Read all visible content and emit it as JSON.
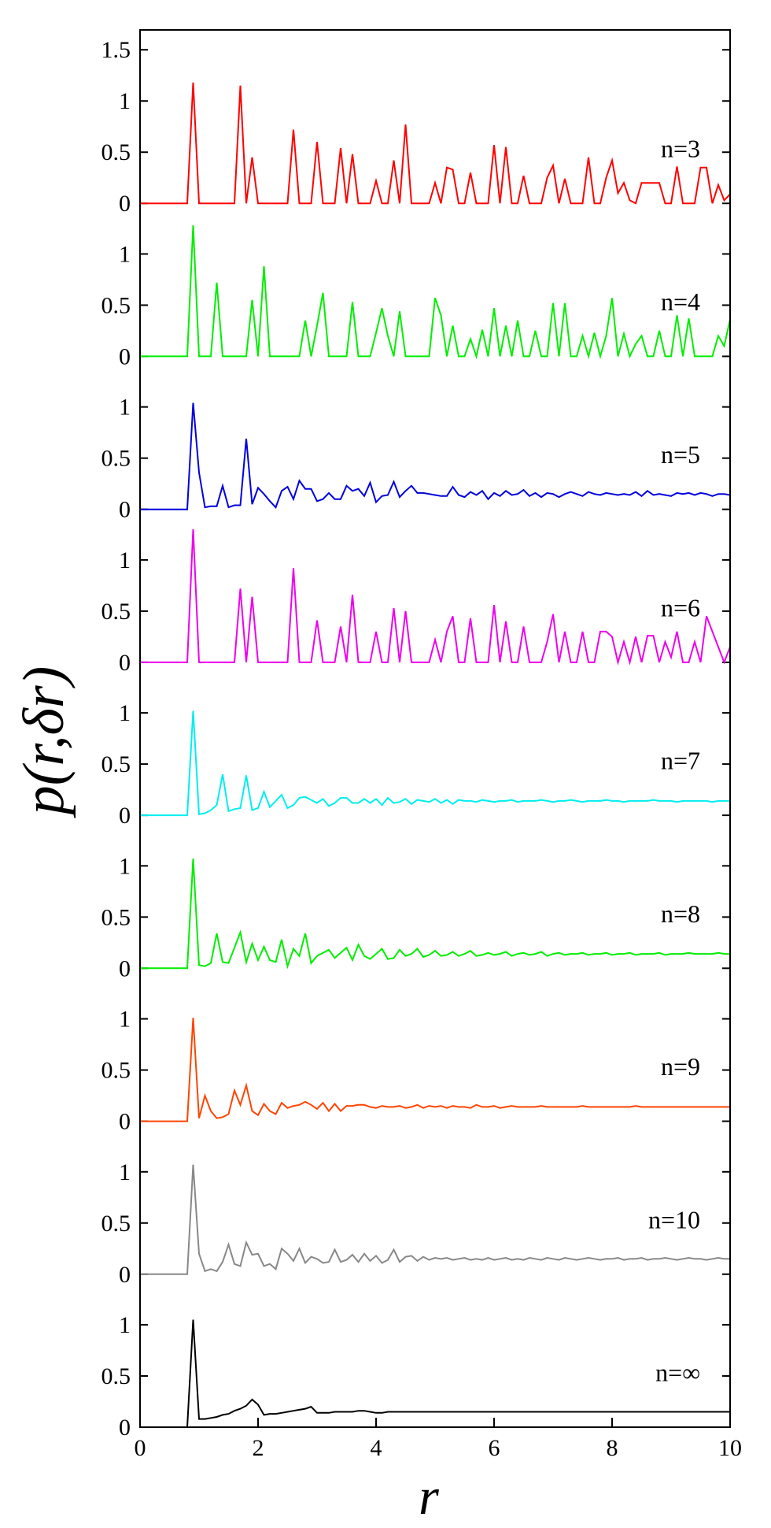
{
  "chart_data": {
    "type": "line",
    "layout": "stacked-panels",
    "ylabel_parts": [
      "p(",
      "r",
      ",",
      "δr",
      ")"
    ],
    "xlabel": "r",
    "xlim": [
      0,
      10
    ],
    "x_ticks": [
      "0",
      "2",
      "4",
      "6",
      "8",
      "10"
    ],
    "top_panel_ylim": [
      0,
      1.5
    ],
    "top_panel_y_ticks": [
      "0",
      "0.5",
      "1",
      "1.5"
    ],
    "panel_ylim": [
      0,
      1.3
    ],
    "panel_y_ticks": [
      "0",
      "0.5",
      "1"
    ],
    "grid": false,
    "x": [
      0.0,
      0.1,
      0.2,
      0.3,
      0.4,
      0.5,
      0.6,
      0.7,
      0.8,
      0.9,
      1.0,
      1.1,
      1.2,
      1.3,
      1.4,
      1.5,
      1.6,
      1.7,
      1.8,
      1.9,
      2.0,
      2.1,
      2.2,
      2.3,
      2.4,
      2.5,
      2.6,
      2.7,
      2.8,
      2.9,
      3.0,
      3.1,
      3.2,
      3.3,
      3.4,
      3.5,
      3.6,
      3.7,
      3.8,
      3.9,
      4.0,
      4.1,
      4.2,
      4.3,
      4.4,
      4.5,
      4.6,
      4.7,
      4.8,
      4.9,
      5.0,
      5.1,
      5.2,
      5.3,
      5.4,
      5.5,
      5.6,
      5.7,
      5.8,
      5.9,
      6.0,
      6.1,
      6.2,
      6.3,
      6.4,
      6.5,
      6.6,
      6.7,
      6.8,
      6.9,
      7.0,
      7.1,
      7.2,
      7.3,
      7.4,
      7.5,
      7.6,
      7.7,
      7.8,
      7.9,
      8.0,
      8.1,
      8.2,
      8.3,
      8.4,
      8.5,
      8.6,
      8.7,
      8.8,
      8.9,
      9.0,
      9.1,
      9.2,
      9.3,
      9.4,
      9.5,
      9.6,
      9.7,
      9.8,
      9.9,
      10.0
    ],
    "series": [
      {
        "name": "n=3",
        "color": "#ff0000",
        "values": [
          0,
          0,
          0,
          0,
          0,
          0,
          0,
          0,
          0,
          1.18,
          0,
          0,
          0,
          0,
          0,
          0,
          0,
          1.15,
          0,
          0.45,
          0,
          0,
          0,
          0,
          0,
          0,
          0.72,
          0,
          0,
          0,
          0.6,
          0,
          0,
          0,
          0.54,
          0,
          0.48,
          0,
          0,
          0,
          0.22,
          0,
          0,
          0.42,
          0,
          0.77,
          0,
          0,
          0,
          0,
          0.2,
          0,
          0.35,
          0.33,
          0,
          0,
          0.3,
          0,
          0,
          0,
          0.57,
          0,
          0.55,
          0,
          0,
          0.27,
          0,
          0,
          0,
          0.25,
          0.37,
          0,
          0.24,
          0,
          0,
          0,
          0.45,
          0,
          0,
          0.25,
          0.42,
          0.1,
          0.2,
          0.03,
          0,
          0.2,
          0.2,
          0.2,
          0.2,
          0,
          0,
          0.36,
          0,
          0,
          0,
          0.35,
          0.35,
          0,
          0.18,
          0.03,
          0.09
        ]
      },
      {
        "name": "n=4",
        "color": "#00ee00",
        "values": [
          0,
          0,
          0,
          0,
          0,
          0,
          0,
          0,
          0,
          1.28,
          0,
          0,
          0,
          0.72,
          0,
          0,
          0,
          0,
          0,
          0.55,
          0,
          0.88,
          0,
          0,
          0,
          0,
          0,
          0,
          0.35,
          0,
          0.3,
          0.62,
          0,
          0,
          0,
          0,
          0.53,
          0,
          0,
          0,
          0.23,
          0.47,
          0.2,
          0,
          0.44,
          0,
          0,
          0,
          0,
          0,
          0.57,
          0.4,
          0,
          0.3,
          0,
          0,
          0.17,
          0,
          0.26,
          0,
          0.47,
          0,
          0.3,
          0,
          0.35,
          0,
          0,
          0.25,
          0,
          0,
          0.52,
          0,
          0.52,
          0,
          0,
          0.2,
          0,
          0.23,
          0,
          0.2,
          0.57,
          0,
          0.22,
          0,
          0.12,
          0.2,
          0,
          0,
          0.25,
          0,
          0,
          0.4,
          0,
          0.37,
          0,
          0,
          0,
          0,
          0.2,
          0.1,
          0.36
        ]
      },
      {
        "name": "n=5",
        "color": "#0000dd",
        "values": [
          0,
          0,
          0,
          0,
          0,
          0,
          0,
          0,
          0,
          1.04,
          0.36,
          0.02,
          0.03,
          0.03,
          0.23,
          0.02,
          0.04,
          0.04,
          0.69,
          0.05,
          0.21,
          0.15,
          0.08,
          0.02,
          0.18,
          0.22,
          0.1,
          0.28,
          0.2,
          0.2,
          0.08,
          0.1,
          0.16,
          0.1,
          0.1,
          0.23,
          0.18,
          0.2,
          0.13,
          0.26,
          0.07,
          0.13,
          0.14,
          0.27,
          0.12,
          0.18,
          0.23,
          0.16,
          0.16,
          0.15,
          0.14,
          0.13,
          0.13,
          0.22,
          0.14,
          0.12,
          0.17,
          0.14,
          0.18,
          0.1,
          0.16,
          0.13,
          0.18,
          0.14,
          0.15,
          0.19,
          0.13,
          0.16,
          0.12,
          0.16,
          0.15,
          0.12,
          0.15,
          0.17,
          0.15,
          0.13,
          0.17,
          0.15,
          0.14,
          0.16,
          0.15,
          0.14,
          0.15,
          0.14,
          0.17,
          0.13,
          0.18,
          0.14,
          0.15,
          0.14,
          0.13,
          0.16,
          0.15,
          0.16,
          0.14,
          0.16,
          0.15,
          0.13,
          0.15,
          0.15,
          0.14
        ]
      },
      {
        "name": "n=6",
        "color": "#ee00ee",
        "values": [
          0,
          0,
          0,
          0,
          0,
          0,
          0,
          0,
          0,
          1.3,
          0,
          0,
          0,
          0,
          0,
          0,
          0,
          0.72,
          0,
          0.64,
          0,
          0,
          0,
          0,
          0,
          0,
          0.92,
          0,
          0,
          0,
          0.41,
          0,
          0,
          0,
          0.35,
          0,
          0.66,
          0,
          0,
          0,
          0.3,
          0,
          0,
          0.53,
          0,
          0.5,
          0,
          0,
          0,
          0,
          0.22,
          0,
          0.3,
          0.45,
          0,
          0,
          0.43,
          0,
          0,
          0,
          0.56,
          0,
          0.4,
          0,
          0,
          0.35,
          0,
          0,
          0,
          0.2,
          0.47,
          0,
          0.3,
          0,
          0,
          0.3,
          0,
          0,
          0.3,
          0.3,
          0.25,
          0,
          0.2,
          0,
          0.25,
          0,
          0.26,
          0.26,
          0,
          0.2,
          0.05,
          0.3,
          0,
          0,
          0.2,
          0,
          0.45,
          0.3,
          0.15,
          0,
          0.15
        ]
      },
      {
        "name": "n=7",
        "color": "#00eeee",
        "values": [
          0,
          0,
          0,
          0,
          0,
          0,
          0,
          0,
          0,
          1.02,
          0.01,
          0.02,
          0.05,
          0.1,
          0.4,
          0.04,
          0.06,
          0.07,
          0.39,
          0.05,
          0.07,
          0.23,
          0.08,
          0.14,
          0.2,
          0.07,
          0.1,
          0.17,
          0.18,
          0.15,
          0.12,
          0.16,
          0.09,
          0.12,
          0.17,
          0.17,
          0.12,
          0.12,
          0.16,
          0.12,
          0.16,
          0.1,
          0.17,
          0.12,
          0.13,
          0.16,
          0.11,
          0.15,
          0.14,
          0.13,
          0.16,
          0.12,
          0.15,
          0.11,
          0.15,
          0.14,
          0.14,
          0.13,
          0.15,
          0.14,
          0.13,
          0.14,
          0.14,
          0.15,
          0.13,
          0.14,
          0.14,
          0.14,
          0.15,
          0.14,
          0.13,
          0.14,
          0.14,
          0.15,
          0.14,
          0.13,
          0.14,
          0.14,
          0.14,
          0.15,
          0.14,
          0.14,
          0.13,
          0.14,
          0.14,
          0.14,
          0.14,
          0.15,
          0.14,
          0.14,
          0.14,
          0.13,
          0.14,
          0.14,
          0.14,
          0.14,
          0.14,
          0.13,
          0.14,
          0.14,
          0.14
        ]
      },
      {
        "name": "n=8",
        "color": "#00ee00",
        "values": [
          0,
          0,
          0,
          0,
          0,
          0,
          0,
          0,
          0,
          1.07,
          0.03,
          0.02,
          0.05,
          0.34,
          0.06,
          0.05,
          0.2,
          0.35,
          0.06,
          0.24,
          0.08,
          0.21,
          0.08,
          0.06,
          0.28,
          0.02,
          0.19,
          0.12,
          0.34,
          0.05,
          0.12,
          0.15,
          0.18,
          0.1,
          0.15,
          0.2,
          0.08,
          0.23,
          0.12,
          0.09,
          0.14,
          0.19,
          0.09,
          0.1,
          0.18,
          0.12,
          0.14,
          0.19,
          0.11,
          0.13,
          0.17,
          0.12,
          0.13,
          0.16,
          0.12,
          0.14,
          0.17,
          0.12,
          0.13,
          0.15,
          0.13,
          0.14,
          0.16,
          0.12,
          0.14,
          0.15,
          0.13,
          0.14,
          0.16,
          0.12,
          0.14,
          0.15,
          0.13,
          0.14,
          0.14,
          0.15,
          0.13,
          0.14,
          0.14,
          0.15,
          0.13,
          0.14,
          0.14,
          0.15,
          0.13,
          0.14,
          0.14,
          0.14,
          0.15,
          0.13,
          0.14,
          0.14,
          0.14,
          0.15,
          0.14,
          0.14,
          0.14,
          0.14,
          0.15,
          0.14,
          0.14
        ]
      },
      {
        "name": "n=9",
        "color": "#ff4400",
        "values": [
          0,
          0,
          0,
          0,
          0,
          0,
          0,
          0,
          0,
          1.01,
          0.03,
          0.25,
          0.1,
          0.03,
          0.04,
          0.07,
          0.3,
          0.16,
          0.35,
          0.1,
          0.06,
          0.17,
          0.1,
          0.07,
          0.18,
          0.13,
          0.15,
          0.16,
          0.19,
          0.16,
          0.12,
          0.18,
          0.1,
          0.17,
          0.1,
          0.15,
          0.15,
          0.16,
          0.16,
          0.14,
          0.13,
          0.15,
          0.14,
          0.14,
          0.15,
          0.13,
          0.14,
          0.16,
          0.13,
          0.15,
          0.14,
          0.15,
          0.13,
          0.15,
          0.14,
          0.14,
          0.13,
          0.16,
          0.14,
          0.14,
          0.15,
          0.13,
          0.14,
          0.15,
          0.14,
          0.14,
          0.14,
          0.14,
          0.15,
          0.14,
          0.14,
          0.14,
          0.14,
          0.14,
          0.14,
          0.15,
          0.14,
          0.14,
          0.14,
          0.14,
          0.14,
          0.14,
          0.14,
          0.14,
          0.15,
          0.14,
          0.14,
          0.14,
          0.14,
          0.14,
          0.14,
          0.14,
          0.14,
          0.14,
          0.14,
          0.14,
          0.14,
          0.14,
          0.14,
          0.14,
          0.14
        ]
      },
      {
        "name": "n=10",
        "color": "#888888",
        "values": [
          0,
          0,
          0,
          0,
          0,
          0,
          0,
          0,
          0,
          1.07,
          0.2,
          0.03,
          0.05,
          0.03,
          0.12,
          0.29,
          0.1,
          0.08,
          0.31,
          0.19,
          0.2,
          0.08,
          0.1,
          0.05,
          0.25,
          0.2,
          0.13,
          0.25,
          0.11,
          0.17,
          0.15,
          0.11,
          0.12,
          0.24,
          0.12,
          0.14,
          0.19,
          0.12,
          0.2,
          0.13,
          0.18,
          0.11,
          0.14,
          0.24,
          0.12,
          0.17,
          0.18,
          0.13,
          0.17,
          0.14,
          0.16,
          0.15,
          0.16,
          0.14,
          0.15,
          0.16,
          0.14,
          0.15,
          0.14,
          0.16,
          0.14,
          0.15,
          0.16,
          0.14,
          0.15,
          0.14,
          0.16,
          0.15,
          0.14,
          0.16,
          0.15,
          0.14,
          0.16,
          0.15,
          0.14,
          0.15,
          0.16,
          0.15,
          0.14,
          0.15,
          0.15,
          0.16,
          0.14,
          0.15,
          0.15,
          0.16,
          0.14,
          0.15,
          0.15,
          0.16,
          0.15,
          0.14,
          0.15,
          0.16,
          0.15,
          0.15,
          0.14,
          0.15,
          0.16,
          0.15,
          0.15
        ]
      },
      {
        "name": "n=∞",
        "color": "#000000",
        "values": [
          0,
          0,
          0,
          0,
          0,
          0,
          0,
          0,
          0,
          1.05,
          0.08,
          0.08,
          0.09,
          0.1,
          0.12,
          0.13,
          0.16,
          0.18,
          0.21,
          0.27,
          0.22,
          0.12,
          0.13,
          0.13,
          0.14,
          0.15,
          0.16,
          0.17,
          0.18,
          0.2,
          0.14,
          0.14,
          0.14,
          0.15,
          0.15,
          0.15,
          0.15,
          0.16,
          0.16,
          0.15,
          0.14,
          0.14,
          0.15,
          0.15,
          0.15,
          0.15,
          0.15,
          0.15,
          0.15,
          0.15,
          0.15,
          0.15,
          0.15,
          0.15,
          0.15,
          0.15,
          0.15,
          0.15,
          0.15,
          0.15,
          0.15,
          0.15,
          0.15,
          0.15,
          0.15,
          0.15,
          0.15,
          0.15,
          0.15,
          0.15,
          0.15,
          0.15,
          0.15,
          0.15,
          0.15,
          0.15,
          0.15,
          0.15,
          0.15,
          0.15,
          0.15,
          0.15,
          0.15,
          0.15,
          0.15,
          0.15,
          0.15,
          0.15,
          0.15,
          0.15,
          0.15,
          0.15,
          0.15,
          0.15,
          0.15,
          0.15,
          0.15,
          0.15,
          0.15,
          0.15,
          0.15
        ]
      }
    ]
  }
}
